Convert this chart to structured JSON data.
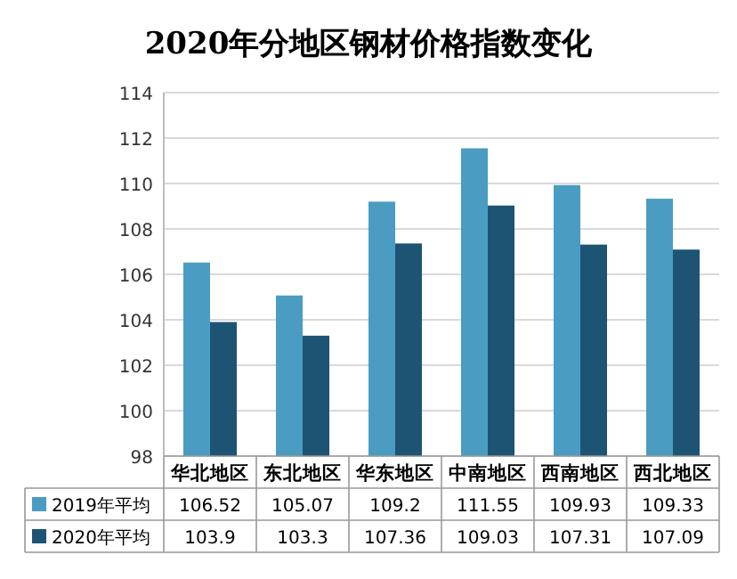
{
  "chart_data": {
    "type": "bar",
    "title": "2020年分地区钢材价格指数变化",
    "categories": [
      "华北地区",
      "东北地区",
      "华东地区",
      "中南地区",
      "西南地区",
      "西北地区"
    ],
    "series": [
      {
        "name": "2019年平均",
        "color": "#4a9cc2",
        "values": [
          106.52,
          105.07,
          109.2,
          111.55,
          109.93,
          109.33
        ]
      },
      {
        "name": "2020年平均",
        "color": "#1d5473",
        "values": [
          103.9,
          103.3,
          107.36,
          109.03,
          107.31,
          107.09
        ]
      }
    ],
    "ylim": [
      98,
      114
    ],
    "yticks": [
      98,
      100,
      102,
      104,
      106,
      108,
      110,
      112,
      114
    ],
    "grid": "y",
    "data_labels": true,
    "legend": "bottom"
  }
}
